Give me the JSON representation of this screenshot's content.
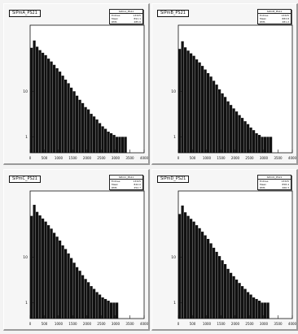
{
  "chart_data": [
    {
      "type": "bar",
      "title": "SiPmA_PS21",
      "stats_title": "SiPmA_PS21",
      "stats": [
        {
          "label": "Entries",
          "value": "13325"
        },
        {
          "label": "Mean",
          "value": "891.1"
        },
        {
          "label": "RMS",
          "value": "485.6"
        }
      ],
      "ylog": true,
      "xlim": [
        0,
        4000
      ],
      "x_ticks": [
        "0",
        "500",
        "1000",
        "1500",
        "2000",
        "2500",
        "3000",
        "3500",
        "4000"
      ],
      "y_ticks": [
        "1",
        "10"
      ],
      "x": [
        50,
        150,
        250,
        350,
        450,
        550,
        650,
        750,
        850,
        950,
        1050,
        1150,
        1250,
        1350,
        1450,
        1550,
        1650,
        1750,
        1850,
        1950,
        2050,
        2150,
        2250,
        2350,
        2450,
        2550,
        2650,
        2750,
        2850,
        2950,
        3050,
        3150,
        3250,
        3350
      ],
      "values": [
        90,
        130,
        95,
        80,
        70,
        62,
        52,
        45,
        38,
        32,
        27,
        22,
        18,
        15,
        12,
        10,
        8,
        6.5,
        5.5,
        4.5,
        4,
        3.2,
        2.8,
        2.4,
        2,
        1.7,
        1.5,
        1.3,
        1.2,
        1.1,
        1,
        1,
        1,
        1
      ]
    },
    {
      "type": "bar",
      "title": "SiPmB_PS21",
      "stats_title": "SiPmB_PS21",
      "stats": [
        {
          "label": "Entries",
          "value": "13325"
        },
        {
          "label": "Mean",
          "value": "883.8"
        },
        {
          "label": "RMS",
          "value": "481.2"
        }
      ],
      "ylog": true,
      "xlim": [
        0,
        4000
      ],
      "x_ticks": [
        "0",
        "500",
        "1000",
        "1500",
        "2000",
        "2500",
        "3000",
        "3500",
        "4000"
      ],
      "y_ticks": [
        "1",
        "10"
      ],
      "x": [
        50,
        150,
        250,
        350,
        450,
        550,
        650,
        750,
        850,
        950,
        1050,
        1150,
        1250,
        1350,
        1450,
        1550,
        1650,
        1750,
        1850,
        1950,
        2050,
        2150,
        2250,
        2350,
        2450,
        2550,
        2650,
        2750,
        2850,
        2950,
        3050,
        3150,
        3250
      ],
      "values": [
        85,
        125,
        92,
        78,
        68,
        60,
        50,
        43,
        36,
        30,
        25,
        21,
        17,
        14,
        11,
        9,
        7.5,
        6,
        5,
        4.2,
        3.6,
        3,
        2.6,
        2.2,
        1.9,
        1.6,
        1.4,
        1.2,
        1.1,
        1,
        1,
        1,
        1
      ]
    },
    {
      "type": "bar",
      "title": "SiPmC_PS21",
      "stats_title": "SiPmC_PS21",
      "stats": [
        {
          "label": "Entries",
          "value": "13325"
        },
        {
          "label": "Mean",
          "value": "842.0"
        },
        {
          "label": "RMS",
          "value": "452.7"
        }
      ],
      "ylog": true,
      "xlim": [
        0,
        4000
      ],
      "x_ticks": [
        "0",
        "500",
        "1000",
        "1500",
        "2000",
        "2500",
        "3000",
        "3500",
        "4000"
      ],
      "y_ticks": [
        "1",
        "10"
      ],
      "x": [
        50,
        150,
        250,
        350,
        450,
        550,
        650,
        750,
        850,
        950,
        1050,
        1150,
        1250,
        1350,
        1450,
        1550,
        1650,
        1750,
        1850,
        1950,
        2050,
        2150,
        2250,
        2350,
        2450,
        2550,
        2650,
        2750,
        2850,
        2950,
        3050
      ],
      "values": [
        80,
        140,
        98,
        82,
        70,
        60,
        50,
        42,
        34,
        28,
        23,
        18,
        15,
        12,
        9.5,
        7.5,
        6,
        5,
        4,
        3.3,
        2.8,
        2.3,
        2,
        1.7,
        1.5,
        1.3,
        1.2,
        1.1,
        1,
        1,
        1
      ]
    },
    {
      "type": "bar",
      "title": "SiPmD_PS21",
      "stats_title": "SiPmD_PS21",
      "stats": [
        {
          "label": "Entries",
          "value": "13325"
        },
        {
          "label": "Mean",
          "value": "858.4"
        },
        {
          "label": "RMS",
          "value": "466.3"
        }
      ],
      "ylog": true,
      "xlim": [
        0,
        4000
      ],
      "x_ticks": [
        "0",
        "500",
        "1000",
        "1500",
        "2000",
        "2500",
        "3000",
        "3500",
        "4000"
      ],
      "y_ticks": [
        "1",
        "10"
      ],
      "x": [
        50,
        150,
        250,
        350,
        450,
        550,
        650,
        750,
        850,
        950,
        1050,
        1150,
        1250,
        1350,
        1450,
        1550,
        1650,
        1750,
        1850,
        1950,
        2050,
        2150,
        2250,
        2350,
        2450,
        2550,
        2650,
        2750,
        2850,
        2950,
        3050,
        3150
      ],
      "values": [
        88,
        135,
        96,
        80,
        69,
        60,
        50,
        43,
        36,
        30,
        25,
        20,
        16,
        13,
        10.5,
        8.5,
        7,
        5.5,
        4.5,
        3.8,
        3.2,
        2.7,
        2.3,
        2,
        1.7,
        1.5,
        1.3,
        1.2,
        1.1,
        1,
        1,
        1
      ]
    }
  ]
}
